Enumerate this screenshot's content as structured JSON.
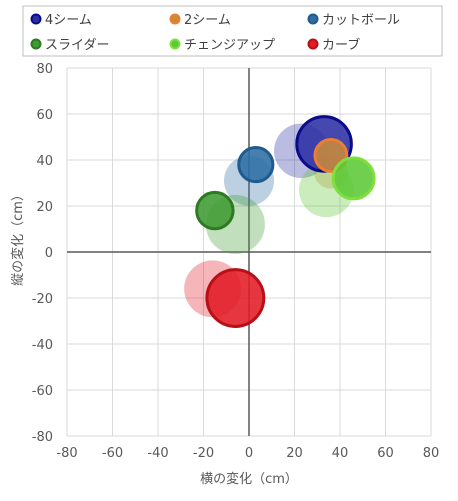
{
  "chart_data": {
    "type": "scatter",
    "xlabel": "横の変化（cm）",
    "ylabel": "縦の変化（cm）",
    "xlim": [
      -80,
      80
    ],
    "ylim": [
      -80,
      80
    ],
    "xticks": [
      -80,
      -60,
      -40,
      -20,
      0,
      20,
      40,
      60,
      80
    ],
    "yticks": [
      -80,
      -60,
      -40,
      -20,
      0,
      20,
      40,
      60,
      80
    ],
    "grid": true,
    "legend_position": "top",
    "series": [
      {
        "name": "4シーム",
        "color": "#1f1aa6",
        "fill": "#2b2fa3",
        "outline": "#0a0a8c",
        "points": [
          {
            "x": 33,
            "y": 47,
            "size": 24,
            "faded": false
          },
          {
            "x": 23,
            "y": 44,
            "size": 24,
            "faded": true
          }
        ]
      },
      {
        "name": "2シーム",
        "color": "#ed7d31",
        "fill": "#c98a3a",
        "outline": "#ed7d31",
        "points": [
          {
            "x": 36,
            "y": 42,
            "size": 14,
            "faded": false
          },
          {
            "x": 36,
            "y": 35,
            "size": 15,
            "faded": true
          }
        ]
      },
      {
        "name": "カットボール",
        "color": "#2e75b6",
        "fill": "#2e6da4",
        "outline": "#1f5b8f",
        "points": [
          {
            "x": 3,
            "y": 38,
            "size": 15,
            "faded": false
          },
          {
            "x": 0,
            "y": 31,
            "size": 22,
            "faded": true
          }
        ]
      },
      {
        "name": "スライダー",
        "color": "#3c9a2f",
        "fill": "#3f9b32",
        "outline": "#2d7a22",
        "points": [
          {
            "x": -15,
            "y": 18,
            "size": 16,
            "faded": false
          },
          {
            "x": -6,
            "y": 12,
            "size": 26,
            "faded": true
          }
        ]
      },
      {
        "name": "チェンジアップ",
        "color": "#8ee04a",
        "fill": "#5cc836",
        "outline": "#7fe03c",
        "points": [
          {
            "x": 46,
            "y": 32,
            "size": 18,
            "faded": false
          },
          {
            "x": 34,
            "y": 27,
            "size": 24,
            "faded": true
          }
        ]
      },
      {
        "name": "カーブ",
        "color": "#e0202a",
        "fill": "#e31a24",
        "outline": "#b80f18",
        "points": [
          {
            "x": -6,
            "y": -20,
            "size": 25,
            "faded": false
          },
          {
            "x": -16,
            "y": -16,
            "size": 25,
            "faded": true
          }
        ]
      }
    ]
  }
}
